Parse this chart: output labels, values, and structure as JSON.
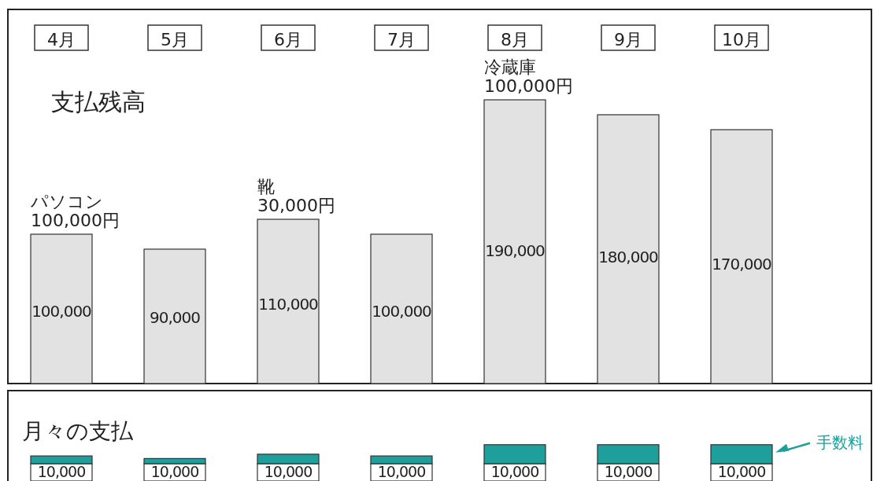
{
  "chart_data": [
    {
      "type": "bar",
      "title": "支払残高",
      "categories": [
        "4月",
        "5月",
        "6月",
        "7月",
        "8月",
        "9月",
        "10月"
      ],
      "values": [
        100000,
        90000,
        110000,
        100000,
        190000,
        180000,
        170000
      ],
      "color": "#e2e2e2",
      "value_labels": [
        "100,000",
        "90,000",
        "110,000",
        "100,000",
        "190,000",
        "180,000",
        "170,000"
      ],
      "annotations": [
        {
          "text": "パソコン 100,000円",
          "x": "4月",
          "y": 100000
        },
        {
          "text": "靴 30,000円",
          "x": "6月",
          "y": 110000
        },
        {
          "text": "冷蔵庫 100,000円",
          "x": "8月",
          "y": 190000
        }
      ]
    },
    {
      "type": "bar",
      "title": "月々の支払",
      "stacked": true,
      "categories": [
        null,
        null,
        null,
        null,
        null,
        null,
        null
      ],
      "series": [
        {
          "color": "#ffffff",
          "values": [
            10000,
            10000,
            10000,
            10000,
            10000,
            10000,
            10000
          ],
          "value_labels": [
            "10,000",
            "10,000",
            "10,000",
            "10,000",
            "10,000",
            "10,000",
            "10,000"
          ]
        },
        {
          "name": "手数料",
          "color": "#1f9f9c",
          "values": [
            4500,
            3000,
            5500,
            4500,
            11000,
            11000,
            11000
          ]
        }
      ]
    }
  ]
}
